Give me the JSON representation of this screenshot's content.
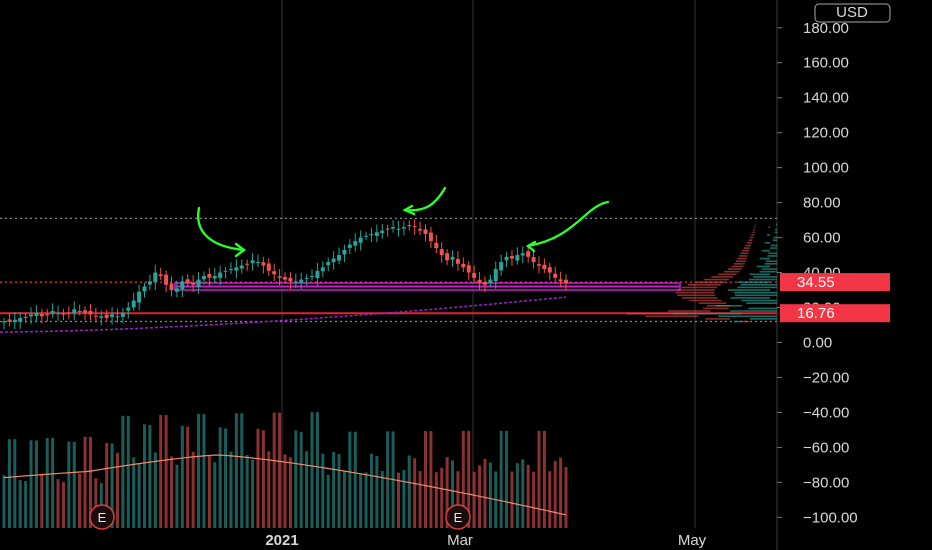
{
  "chart_data": {
    "type": "candlestick",
    "currency_label": "USD",
    "y_ticks": [
      "180.00",
      "160.00",
      "140.00",
      "120.00",
      "100.00",
      "80.00",
      "60.00",
      "40.00",
      "20.00",
      "0.00",
      "−20.00",
      "−40.00",
      "−60.00",
      "−80.00",
      "−100.00"
    ],
    "x_labels": [
      "2021",
      "Mar",
      "May"
    ],
    "ylim": [
      -102,
      190
    ],
    "price_tags": [
      {
        "value": 34.55,
        "label": "34.55",
        "color": "#f23645"
      },
      {
        "value": 16.76,
        "label": "16.76",
        "color": "#f23645"
      }
    ],
    "horizontal_levels": [
      {
        "value": 34.55,
        "style": "dotted",
        "color": "#f23645"
      },
      {
        "value": 16.76,
        "style": "solid",
        "color": "#e0242f"
      },
      {
        "value": 32.0,
        "style": "solid",
        "color": "#c81ec8"
      },
      {
        "value": 71.0,
        "style": "dotted",
        "color": "#888888"
      },
      {
        "value": 12.0,
        "style": "dotted",
        "color": "#888888"
      }
    ],
    "close_series": [
      12,
      12,
      13,
      14,
      14,
      16,
      17,
      15,
      16,
      18,
      17,
      16,
      17,
      19,
      18,
      17,
      16,
      15,
      15,
      14,
      16,
      15,
      17,
      20,
      24,
      29,
      32,
      35,
      40,
      38,
      33,
      30,
      31,
      35,
      34,
      33,
      36,
      38,
      37,
      38,
      40,
      41,
      42,
      43,
      44,
      45,
      47,
      46,
      44,
      41,
      39,
      37,
      36,
      35,
      35,
      36,
      37,
      38,
      41,
      43,
      46,
      48,
      50,
      53,
      56,
      58,
      60,
      61,
      62,
      63,
      64,
      65,
      66,
      65,
      66,
      67,
      66,
      64,
      62,
      58,
      54,
      50,
      47,
      49,
      45,
      43,
      40,
      37,
      34,
      33,
      36,
      42,
      46,
      49,
      48,
      50,
      51,
      49,
      46,
      44,
      42,
      40,
      37,
      35,
      34
    ],
    "volume_events": [
      "E",
      "E"
    ]
  }
}
